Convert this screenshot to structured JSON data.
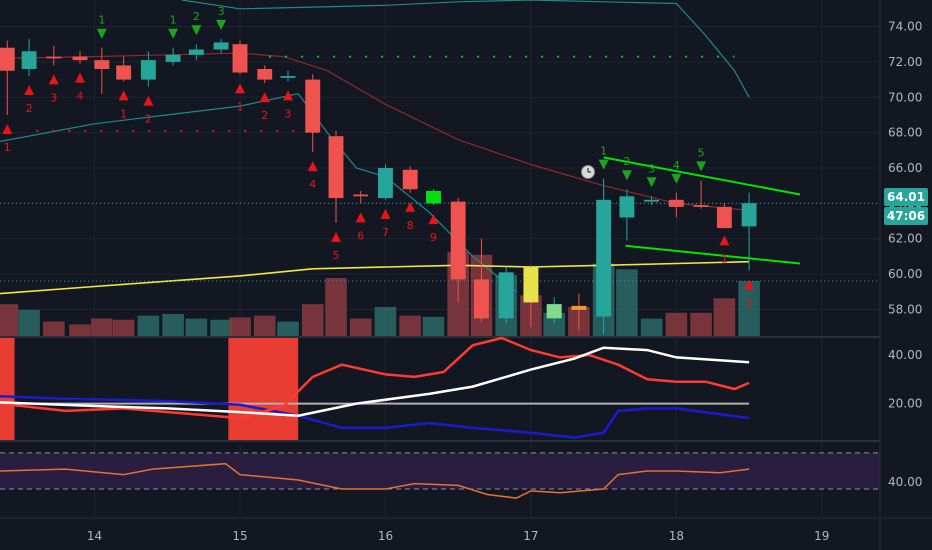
{
  "chart_data": {
    "type": "candlestick",
    "price_range": [
      56.5,
      75.5
    ],
    "x_range": [
      13.35,
      19.4
    ],
    "y_ticks": [
      "58.00",
      "60.00",
      "62.00",
      "64.00",
      "66.00",
      "68.00",
      "70.00",
      "72.00",
      "74.00"
    ],
    "x_ticks": [
      "14",
      "15",
      "16",
      "17",
      "18",
      "19"
    ],
    "last_price_label": "64.01",
    "countdown_label": "47:06",
    "colors": {
      "background": "#131722",
      "up": "#26a69a",
      "down": "#ef5350",
      "grid": "#1f2330",
      "ma_yellow": "#f5e742",
      "ma_dark_red": "#8a2b2b",
      "bollinger": "#1f8a83",
      "trendline": "#00e600",
      "dmi_adx": "#ffffff",
      "dmi_plus": "#ff3b30",
      "dmi_minus": "#1a1ad1",
      "rsi_line": "#e8702a",
      "rsi_band": "#2a1e40"
    },
    "candles": [
      {
        "t": 13.4,
        "o": 72.8,
        "h": 73.2,
        "l": 69.0,
        "c": 71.5
      },
      {
        "t": 13.55,
        "o": 71.6,
        "h": 73.3,
        "l": 71.2,
        "c": 72.6
      },
      {
        "t": 13.72,
        "o": 72.3,
        "h": 72.9,
        "l": 71.8,
        "c": 72.2
      },
      {
        "t": 13.9,
        "o": 72.3,
        "h": 72.6,
        "l": 71.9,
        "c": 72.1
      },
      {
        "t": 14.05,
        "o": 72.1,
        "h": 72.8,
        "l": 70.2,
        "c": 71.6
      },
      {
        "t": 14.2,
        "o": 71.8,
        "h": 72.3,
        "l": 70.9,
        "c": 71.0
      },
      {
        "t": 14.37,
        "o": 71.0,
        "h": 72.6,
        "l": 70.6,
        "c": 72.1
      },
      {
        "t": 14.54,
        "o": 72.0,
        "h": 72.8,
        "l": 71.8,
        "c": 72.4
      },
      {
        "t": 14.7,
        "o": 72.4,
        "h": 73.0,
        "l": 72.1,
        "c": 72.7
      },
      {
        "t": 14.87,
        "o": 72.7,
        "h": 73.3,
        "l": 72.5,
        "c": 73.1
      },
      {
        "t": 15.0,
        "o": 73.0,
        "h": 73.2,
        "l": 71.3,
        "c": 71.4
      },
      {
        "t": 15.17,
        "o": 71.6,
        "h": 71.8,
        "l": 70.8,
        "c": 71.0
      },
      {
        "t": 15.33,
        "o": 71.1,
        "h": 71.5,
        "l": 70.9,
        "c": 71.2
      },
      {
        "t": 15.5,
        "o": 71.0,
        "h": 71.3,
        "l": 66.9,
        "c": 68.0
      },
      {
        "t": 15.66,
        "o": 67.8,
        "h": 68.1,
        "l": 62.9,
        "c": 64.3
      },
      {
        "t": 15.83,
        "o": 64.5,
        "h": 64.7,
        "l": 64.0,
        "c": 64.4
      },
      {
        "t": 16.0,
        "o": 64.3,
        "h": 66.2,
        "l": 64.2,
        "c": 66.0
      },
      {
        "t": 16.17,
        "o": 65.9,
        "h": 66.1,
        "l": 64.6,
        "c": 64.8
      },
      {
        "t": 16.33,
        "o": 64.0,
        "h": 64.8,
        "l": 63.9,
        "c": 64.7
      },
      {
        "t": 16.5,
        "o": 64.1,
        "h": 64.3,
        "l": 58.4,
        "c": 59.7
      },
      {
        "t": 16.66,
        "o": 59.7,
        "h": 62.0,
        "l": 57.3,
        "c": 57.5
      },
      {
        "t": 16.83,
        "o": 57.5,
        "h": 60.4,
        "l": 57.2,
        "c": 60.1
      },
      {
        "t": 17.0,
        "o": 60.4,
        "h": 60.5,
        "l": 57.0,
        "c": 58.4
      },
      {
        "t": 17.16,
        "o": 57.5,
        "h": 58.7,
        "l": 57.2,
        "c": 58.3
      },
      {
        "t": 17.33,
        "o": 58.2,
        "h": 58.9,
        "l": 56.8,
        "c": 58.0
      },
      {
        "t": 17.5,
        "o": 57.6,
        "h": 65.4,
        "l": 56.6,
        "c": 64.2
      },
      {
        "t": 17.66,
        "o": 63.2,
        "h": 64.8,
        "l": 61.9,
        "c": 64.4
      },
      {
        "t": 17.83,
        "o": 64.1,
        "h": 64.4,
        "l": 63.9,
        "c": 64.2
      },
      {
        "t": 18.0,
        "o": 64.2,
        "h": 64.6,
        "l": 63.2,
        "c": 63.8
      },
      {
        "t": 18.17,
        "o": 63.9,
        "h": 65.3,
        "l": 63.7,
        "c": 63.8
      },
      {
        "t": 18.33,
        "o": 63.8,
        "h": 64.0,
        "l": 62.7,
        "c": 62.6
      },
      {
        "t": 18.5,
        "o": 62.7,
        "h": 64.6,
        "l": 60.2,
        "c": 64.01
      }
    ],
    "volume": [
      {
        "t": 13.4,
        "v": 0.55
      },
      {
        "t": 13.55,
        "v": 0.45
      },
      {
        "t": 13.72,
        "v": 0.25
      },
      {
        "t": 13.9,
        "v": 0.2
      },
      {
        "t": 14.05,
        "v": 0.3
      },
      {
        "t": 14.2,
        "v": 0.28
      },
      {
        "t": 14.37,
        "v": 0.35
      },
      {
        "t": 14.54,
        "v": 0.38
      },
      {
        "t": 14.7,
        "v": 0.3
      },
      {
        "t": 14.87,
        "v": 0.28
      },
      {
        "t": 15.0,
        "v": 0.32
      },
      {
        "t": 15.17,
        "v": 0.35
      },
      {
        "t": 15.33,
        "v": 0.25
      },
      {
        "t": 15.5,
        "v": 0.55
      },
      {
        "t": 15.66,
        "v": 1.0
      },
      {
        "t": 15.83,
        "v": 0.3
      },
      {
        "t": 16.0,
        "v": 0.5
      },
      {
        "t": 16.17,
        "v": 0.35
      },
      {
        "t": 16.33,
        "v": 0.33
      },
      {
        "t": 16.5,
        "v": 1.45
      },
      {
        "t": 16.66,
        "v": 1.4
      },
      {
        "t": 16.83,
        "v": 1.05
      },
      {
        "t": 17.0,
        "v": 0.7
      },
      {
        "t": 17.16,
        "v": 0.4
      },
      {
        "t": 17.33,
        "v": 0.5
      },
      {
        "t": 17.5,
        "v": 1.25
      },
      {
        "t": 17.66,
        "v": 1.15
      },
      {
        "t": 17.83,
        "v": 0.3
      },
      {
        "t": 18.0,
        "v": 0.4
      },
      {
        "t": 18.17,
        "v": 0.4
      },
      {
        "t": 18.33,
        "v": 0.65
      },
      {
        "t": 18.5,
        "v": 0.95
      }
    ],
    "ma_yellow": [
      [
        13.35,
        58.9
      ],
      [
        14.0,
        59.3
      ],
      [
        14.5,
        59.6
      ],
      [
        15.0,
        59.9
      ],
      [
        15.5,
        60.3
      ],
      [
        16.0,
        60.4
      ],
      [
        16.5,
        60.5
      ],
      [
        17.0,
        60.4
      ],
      [
        17.5,
        60.5
      ],
      [
        18.0,
        60.6
      ],
      [
        18.5,
        60.7
      ]
    ],
    "ma_dark_red": [
      [
        13.35,
        72.2
      ],
      [
        14.0,
        72.3
      ],
      [
        14.5,
        72.4
      ],
      [
        15.0,
        72.5
      ],
      [
        15.3,
        72.3
      ],
      [
        15.6,
        71.5
      ],
      [
        16.0,
        69.6
      ],
      [
        16.5,
        67.6
      ],
      [
        17.0,
        66.2
      ],
      [
        17.5,
        65.0
      ],
      [
        18.0,
        64.0
      ],
      [
        18.5,
        63.6
      ]
    ],
    "bollinger_upper": [
      [
        14.6,
        75.5
      ],
      [
        15.0,
        75.0
      ],
      [
        15.5,
        75.1
      ],
      [
        16.0,
        75.2
      ],
      [
        16.5,
        75.4
      ],
      [
        17.0,
        75.5
      ],
      [
        17.5,
        75.4
      ],
      [
        18.0,
        75.3
      ],
      [
        18.2,
        73.5
      ],
      [
        18.4,
        71.5
      ],
      [
        18.5,
        70.0
      ]
    ],
    "bollinger_lower": [
      [
        13.35,
        67.5
      ],
      [
        14.0,
        68.5
      ],
      [
        14.5,
        69.0
      ],
      [
        15.0,
        69.5
      ],
      [
        15.4,
        70.2
      ],
      [
        15.6,
        68.0
      ],
      [
        15.8,
        66.0
      ],
      [
        16.0,
        65.5
      ],
      [
        16.3,
        63.5
      ],
      [
        16.6,
        61.0
      ],
      [
        16.9,
        59.0
      ]
    ],
    "dotted_level_top": 72.3,
    "dotted_level_mid": 68.1,
    "trendline_upper": [
      [
        17.5,
        66.6
      ],
      [
        18.85,
        64.5
      ]
    ],
    "trendline_lower": [
      [
        17.65,
        61.6
      ],
      [
        18.85,
        60.6
      ]
    ],
    "last_price_line": 64.01,
    "secondary_dotted_line": 59.6,
    "markers_sell": [
      {
        "t": 13.4,
        "label": "1"
      },
      {
        "t": 13.55,
        "label": "2"
      },
      {
        "t": 13.72,
        "label": "3"
      },
      {
        "t": 13.9,
        "label": "4"
      },
      {
        "t": 14.2,
        "label": "1"
      },
      {
        "t": 14.37,
        "label": "2"
      },
      {
        "t": 15.0,
        "label": "1"
      },
      {
        "t": 15.17,
        "label": "2"
      },
      {
        "t": 15.33,
        "label": "3"
      },
      {
        "t": 15.5,
        "label": "4"
      },
      {
        "t": 15.66,
        "label": "5"
      },
      {
        "t": 15.83,
        "label": "6"
      },
      {
        "t": 16.0,
        "label": "7"
      },
      {
        "t": 16.17,
        "label": "8"
      },
      {
        "t": 16.33,
        "label": "9"
      },
      {
        "t": 18.33,
        "label": "1"
      },
      {
        "t": 18.5,
        "label": "2"
      }
    ],
    "markers_buy": [
      {
        "t": 14.05,
        "label": "1"
      },
      {
        "t": 14.54,
        "label": "1"
      },
      {
        "t": 14.7,
        "label": "2"
      },
      {
        "t": 14.87,
        "label": "3"
      },
      {
        "t": 17.5,
        "label": "1"
      },
      {
        "t": 17.66,
        "label": "2"
      },
      {
        "t": 17.83,
        "label": "3"
      },
      {
        "t": 18.0,
        "label": "4"
      },
      {
        "t": 18.17,
        "label": "5"
      }
    ],
    "dmi": {
      "range": [
        5,
        47
      ],
      "ticks": [
        "40.00",
        "20.00"
      ],
      "adx": [
        [
          13.35,
          20.5
        ],
        [
          14.0,
          19.0
        ],
        [
          14.5,
          18.0
        ],
        [
          15.0,
          16.5
        ],
        [
          15.4,
          15.0
        ],
        [
          15.8,
          20.0
        ],
        [
          16.3,
          24.0
        ],
        [
          16.6,
          27.0
        ],
        [
          17.0,
          34.0
        ],
        [
          17.3,
          38.5
        ],
        [
          17.5,
          43.0
        ],
        [
          17.8,
          42.0
        ],
        [
          18.0,
          39.0
        ],
        [
          18.5,
          37.0
        ]
      ],
      "plus_di": [
        [
          13.35,
          20.0
        ],
        [
          13.8,
          17.0
        ],
        [
          14.2,
          18.0
        ],
        [
          14.6,
          16.0
        ],
        [
          15.0,
          14.0
        ],
        [
          15.3,
          19.0
        ],
        [
          15.5,
          31.0
        ],
        [
          15.7,
          36.0
        ],
        [
          16.0,
          32.0
        ],
        [
          16.2,
          31.0
        ],
        [
          16.4,
          33.0
        ],
        [
          16.6,
          44.0
        ],
        [
          16.8,
          47.0
        ],
        [
          17.0,
          42.0
        ],
        [
          17.2,
          39.0
        ],
        [
          17.4,
          40.0
        ],
        [
          17.6,
          36.0
        ],
        [
          17.8,
          30.0
        ],
        [
          18.0,
          29.0
        ],
        [
          18.2,
          29.0
        ],
        [
          18.4,
          26.0
        ],
        [
          18.5,
          28.5
        ]
      ],
      "minus_di": [
        [
          13.35,
          23.0
        ],
        [
          13.8,
          22.0
        ],
        [
          14.5,
          21.0
        ],
        [
          15.0,
          19.5
        ],
        [
          15.4,
          15.0
        ],
        [
          15.7,
          10.0
        ],
        [
          16.0,
          10.0
        ],
        [
          16.3,
          12.0
        ],
        [
          16.6,
          10.0
        ],
        [
          17.0,
          8.0
        ],
        [
          17.3,
          6.0
        ],
        [
          17.5,
          8.0
        ],
        [
          17.6,
          17.0
        ],
        [
          17.8,
          18.0
        ],
        [
          18.0,
          18.0
        ],
        [
          18.5,
          14.0
        ]
      ],
      "reference": 20,
      "highlight_bars": [
        [
          13.35,
          13.45
        ],
        [
          14.92,
          15.4
        ]
      ]
    },
    "rsi": {
      "range": [
        20,
        62
      ],
      "ticks": [
        "40.00"
      ],
      "band": [
        36,
        56
      ],
      "line": [
        [
          13.35,
          46
        ],
        [
          13.8,
          47
        ],
        [
          14.2,
          44
        ],
        [
          14.4,
          47
        ],
        [
          14.9,
          50
        ],
        [
          15.0,
          44
        ],
        [
          15.4,
          41
        ],
        [
          15.7,
          36
        ],
        [
          16.0,
          36
        ],
        [
          16.2,
          39
        ],
        [
          16.5,
          38
        ],
        [
          16.7,
          33
        ],
        [
          16.9,
          31
        ],
        [
          17.0,
          35
        ],
        [
          17.2,
          34
        ],
        [
          17.5,
          36
        ],
        [
          17.6,
          44
        ],
        [
          17.8,
          46
        ],
        [
          18.0,
          46
        ],
        [
          18.3,
          45
        ],
        [
          18.5,
          47
        ]
      ]
    }
  }
}
